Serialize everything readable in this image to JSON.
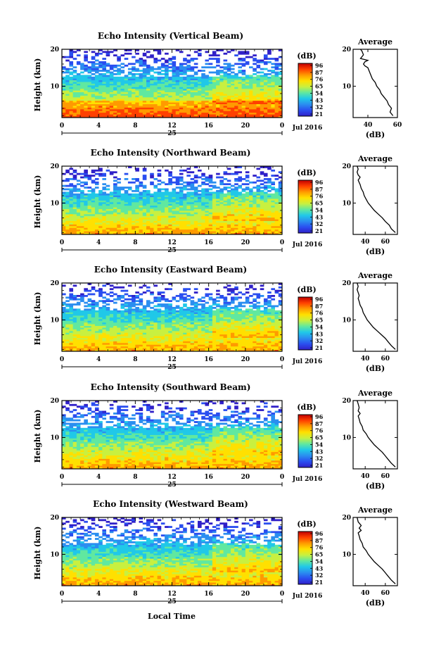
{
  "figure": {
    "bottom_xlabel": "Local Time",
    "date_label": "Jul 2016",
    "day_label": "25"
  },
  "colorbar": {
    "unit": "(dB)",
    "ticks": [
      "96",
      "87",
      "76",
      "65",
      "54",
      "43",
      "32",
      "21"
    ],
    "colors": [
      "#c00000",
      "#ff4000",
      "#ff9a00",
      "#ffe000",
      "#c8f040",
      "#60e8a0",
      "#20c8e8",
      "#2a8ef0",
      "#2a4ef0",
      "#3020c8"
    ]
  },
  "chart_data": [
    {
      "type": "heatmap",
      "title": "Echo Intensity (Vertical Beam)",
      "ylabel": "Height (km)",
      "x_ticks": [
        "0",
        "4",
        "8",
        "12",
        "16",
        "20",
        "0"
      ],
      "y_ticks": [
        "20",
        "10"
      ],
      "xlim": [
        0,
        24
      ],
      "ylim": [
        1.5,
        20
      ],
      "profile": {
        "title": "Average",
        "xlabel": "(dB)",
        "x_ticks": [
          "40",
          "60"
        ],
        "y_ticks": [
          "20",
          "10"
        ],
        "xlim": [
          30,
          60
        ],
        "x": [
          57,
          55,
          56,
          54,
          53,
          51,
          49,
          48,
          46,
          45,
          43,
          42,
          41,
          40,
          38,
          37,
          38,
          40,
          35,
          37,
          36,
          35
        ],
        "y": [
          2,
          3,
          4,
          5,
          6,
          7,
          8,
          9,
          10,
          11,
          12,
          13,
          14,
          15,
          15.5,
          16,
          16.6,
          17,
          17.5,
          18.5,
          19.5,
          20
        ]
      }
    },
    {
      "type": "heatmap",
      "title": "Echo Intensity (Northward Beam)",
      "ylabel": "Height (km)",
      "x_ticks": [
        "0",
        "4",
        "8",
        "12",
        "16",
        "20",
        "0"
      ],
      "y_ticks": [
        "20",
        "10"
      ],
      "xlim": [
        0,
        24
      ],
      "ylim": [
        1.5,
        20
      ],
      "profile": {
        "title": "Average",
        "xlabel": "(dB)",
        "x_ticks": [
          "40",
          "60"
        ],
        "y_ticks": [
          "20",
          "10"
        ],
        "xlim": [
          28,
          72
        ],
        "x": [
          70,
          66,
          64,
          60,
          57,
          53,
          49,
          46,
          43,
          41,
          39,
          38,
          36,
          35,
          34,
          33,
          35,
          33,
          32,
          33,
          32
        ],
        "y": [
          2,
          3,
          4,
          5,
          6,
          7,
          8,
          9,
          10,
          11,
          12,
          13,
          14,
          15,
          15.6,
          16.2,
          17,
          17.6,
          18.4,
          19.2,
          20
        ]
      }
    },
    {
      "type": "heatmap",
      "title": "Echo Intensity (Eastward Beam)",
      "ylabel": "Height (km)",
      "x_ticks": [
        "0",
        "4",
        "8",
        "12",
        "16",
        "20",
        "0"
      ],
      "y_ticks": [
        "20",
        "10"
      ],
      "xlim": [
        0,
        24
      ],
      "ylim": [
        1.5,
        20
      ],
      "profile": {
        "title": "Average",
        "xlabel": "(dB)",
        "x_ticks": [
          "40",
          "60"
        ],
        "y_ticks": [
          "20",
          "10"
        ],
        "xlim": [
          28,
          72
        ],
        "x": [
          70,
          66,
          63,
          60,
          56,
          52,
          48,
          45,
          42,
          40,
          38,
          37,
          35,
          34,
          33,
          34,
          33,
          32,
          33,
          32
        ],
        "y": [
          2,
          3,
          4,
          5,
          6,
          7,
          8,
          9,
          10,
          11,
          12,
          13,
          14,
          15,
          15.8,
          16.6,
          17.4,
          18.2,
          19.1,
          20
        ]
      }
    },
    {
      "type": "heatmap",
      "title": "Echo Intensity (Southward Beam)",
      "ylabel": "Height (km)",
      "x_ticks": [
        "0",
        "4",
        "8",
        "12",
        "16",
        "20",
        "0"
      ],
      "y_ticks": [
        "20",
        "10"
      ],
      "xlim": [
        0,
        24
      ],
      "ylim": [
        1.5,
        20
      ],
      "profile": {
        "title": "Average",
        "xlabel": "(dB)",
        "x_ticks": [
          "40",
          "60"
        ],
        "y_ticks": [
          "20",
          "10"
        ],
        "xlim": [
          28,
          72
        ],
        "x": [
          70,
          66,
          63,
          60,
          57,
          53,
          49,
          46,
          43,
          41,
          38,
          37,
          35,
          34,
          33,
          35,
          33,
          34,
          33,
          32
        ],
        "y": [
          2,
          3,
          4,
          5,
          6,
          7,
          8,
          9,
          10,
          11,
          12,
          13,
          14,
          15,
          15.8,
          16.5,
          17.2,
          18.1,
          19.1,
          20
        ]
      }
    },
    {
      "type": "heatmap",
      "title": "Echo Intensity (Westward Beam)",
      "ylabel": "Height (km)",
      "x_ticks": [
        "0",
        "4",
        "8",
        "12",
        "16",
        "20",
        "0"
      ],
      "y_ticks": [
        "20",
        "10"
      ],
      "xlim": [
        0,
        24
      ],
      "ylim": [
        1.5,
        20
      ],
      "profile": {
        "title": "Average",
        "xlabel": "(dB)",
        "x_ticks": [
          "40",
          "60"
        ],
        "y_ticks": [
          "20",
          "10"
        ],
        "xlim": [
          28,
          72
        ],
        "x": [
          70,
          66,
          63,
          60,
          57,
          53,
          49,
          46,
          43,
          41,
          38,
          37,
          35,
          34,
          33,
          36,
          34,
          36,
          33,
          32
        ],
        "y": [
          2,
          3,
          4,
          5,
          6,
          7,
          8,
          9,
          10,
          11,
          12,
          13,
          14,
          15,
          15.8,
          16.5,
          17.1,
          17.8,
          18.8,
          20
        ]
      }
    }
  ]
}
